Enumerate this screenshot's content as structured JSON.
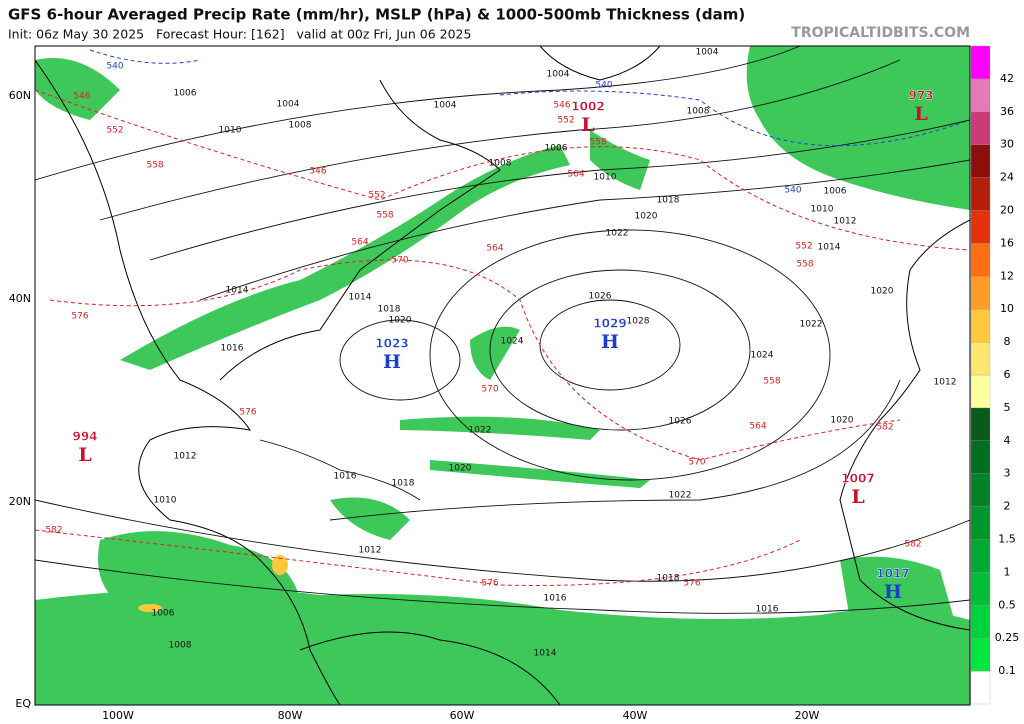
{
  "header": {
    "title": "GFS 6-hour Averaged Precip Rate (mm/hr), MSLP (hPa) & 1000-500mb Thickness (dam)",
    "subtitle": "Init: 06z May 30 2025   Forecast Hour: [162]   valid at 00z Fri, Jun 06 2025",
    "site": "TROPICALTIDBITS.COM"
  },
  "map": {
    "lat_labels": [
      "60N",
      "40N",
      "20N",
      "EQ"
    ],
    "lon_labels": [
      "100W",
      "80W",
      "60W",
      "40W",
      "20W"
    ],
    "centers": [
      {
        "kind": "H",
        "value": 1029
      },
      {
        "kind": "H",
        "value": 1023
      },
      {
        "kind": "H",
        "value": 1017
      },
      {
        "kind": "L",
        "value": 1002
      },
      {
        "kind": "L",
        "value": 973
      },
      {
        "kind": "L",
        "value": 1007
      },
      {
        "kind": "L",
        "value": 994
      }
    ],
    "isobar_labels": [
      1004,
      1004,
      1006,
      1004,
      1004,
      1008,
      1008,
      1010,
      1006,
      1010,
      1008,
      1018,
      1020,
      1022,
      1006,
      1010,
      1012,
      1014,
      1020,
      1026,
      1028,
      1024,
      1022,
      1024,
      1020,
      1018,
      1014,
      1014,
      1016,
      1026,
      1022,
      1020,
      1018,
      1016,
      1022,
      1012,
      1018,
      1016,
      1016,
      1014,
      1012,
      1010,
      1008,
      1006,
      1020,
      1012
    ],
    "thickness_labels": [
      546,
      552,
      558,
      546,
      552,
      558,
      564,
      570,
      564,
      546,
      552,
      558,
      564,
      570,
      576,
      552,
      558,
      558,
      564,
      570,
      576,
      582,
      582,
      582,
      576,
      576
    ],
    "cold_thickness_labels": [
      540,
      540,
      540
    ]
  },
  "colorbar": {
    "labels": [
      0.1,
      0.25,
      0.5,
      1,
      1.5,
      2,
      3,
      4,
      5,
      6,
      8,
      10,
      12,
      16,
      20,
      24,
      30,
      36,
      42
    ],
    "colors": [
      "#ffffff",
      "#00e640",
      "#00d23c",
      "#00be38",
      "#00aa32",
      "#00962c",
      "#008226",
      "#006e20",
      "#0a5a1c",
      "#ffffa0",
      "#ffe66e",
      "#ffc83c",
      "#ff9b28",
      "#ff6e14",
      "#e6320a",
      "#b41e0a",
      "#8c0f0a",
      "#c83c78",
      "#e678b4",
      "#ff00ff"
    ]
  }
}
